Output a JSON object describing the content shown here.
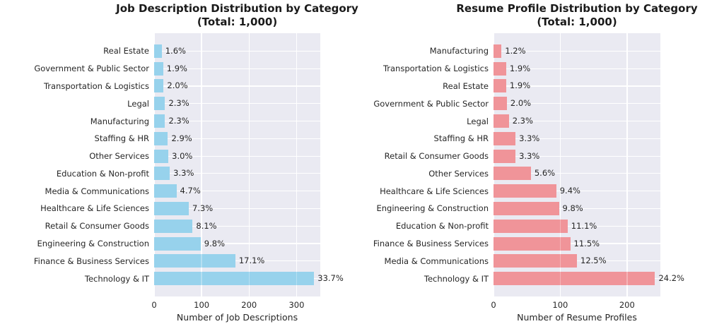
{
  "plot_style": {
    "plot_background": "#eaeaf2",
    "grid_color": "#ffffff",
    "text_color": "#262626",
    "title_color": "#1a1a1a",
    "figure_background": "#ffffff"
  },
  "chart_data": [
    {
      "type": "bar",
      "orientation": "horizontal",
      "title": "Job Description Distribution by Category",
      "subtitle": "(Total: 1,000)",
      "xlabel": "Number of Job Descriptions",
      "total": 1000,
      "bar_color": "#97d2ec",
      "grid": true,
      "xlim": [
        0,
        350
      ],
      "xticks": [
        "0",
        "100",
        "200",
        "300"
      ],
      "xtick_values": [
        0,
        100,
        200,
        300
      ],
      "categories": [
        "Real Estate",
        "Government & Public Sector",
        "Transportation & Logistics",
        "Legal",
        "Manufacturing",
        "Staffing & HR",
        "Other Services",
        "Education & Non-profit",
        "Media & Communications",
        "Healthcare & Life Sciences",
        "Retail & Consumer Goods",
        "Engineering & Construction",
        "Finance & Business Services",
        "Technology & IT"
      ],
      "values": [
        16,
        19,
        20,
        23,
        23,
        29,
        30,
        33,
        47,
        73,
        81,
        98,
        171,
        337
      ],
      "value_labels": [
        "1.6%",
        "1.9%",
        "2.0%",
        "2.3%",
        "2.3%",
        "2.9%",
        "3.0%",
        "3.3%",
        "4.7%",
        "7.3%",
        "8.1%",
        "9.8%",
        "17.1%",
        "33.7%"
      ]
    },
    {
      "type": "bar",
      "orientation": "horizontal",
      "title": "Resume Profile Distribution by Category",
      "subtitle": "(Total: 1,000)",
      "xlabel": "Number of Resume Profiles",
      "total": 1000,
      "bar_color": "#f09499",
      "grid": true,
      "xlim": [
        0,
        250
      ],
      "xticks": [
        "0",
        "100",
        "200"
      ],
      "xtick_values": [
        0,
        100,
        200
      ],
      "categories": [
        "Manufacturing",
        "Transportation & Logistics",
        "Real Estate",
        "Government & Public Sector",
        "Legal",
        "Staffing & HR",
        "Retail & Consumer Goods",
        "Other Services",
        "Healthcare & Life Sciences",
        "Engineering & Construction",
        "Education & Non-profit",
        "Finance & Business Services",
        "Media & Communications",
        "Technology & IT"
      ],
      "values": [
        12,
        19,
        19,
        20,
        23,
        33,
        33,
        56,
        94,
        98,
        111,
        115,
        125,
        242
      ],
      "value_labels": [
        "1.2%",
        "1.9%",
        "1.9%",
        "2.0%",
        "2.3%",
        "3.3%",
        "3.3%",
        "5.6%",
        "9.4%",
        "9.8%",
        "11.1%",
        "11.5%",
        "12.5%",
        "24.2%"
      ]
    }
  ]
}
